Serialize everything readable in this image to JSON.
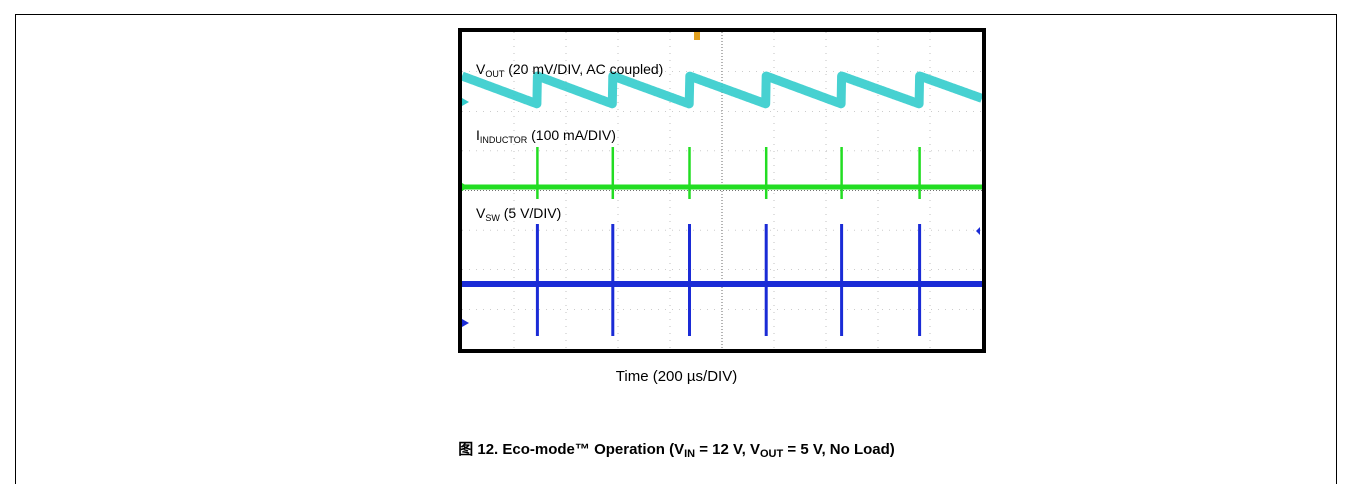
{
  "figure": {
    "caption_prefix": "图 12. Eco-mode™ Operation (V",
    "caption_vin_sub": "IN",
    "caption_mid": " = 12 V, V",
    "caption_vout_sub": "OUT",
    "caption_suffix": " = 5 V, No Load)",
    "x_axis_label": "Time (200 µs/DIV)"
  },
  "traces": {
    "vout": {
      "main": "V",
      "sub": "OUT",
      "rest": " (20 mV/DIV, AC coupled)",
      "color": "#33cccc"
    },
    "iind": {
      "main": "I",
      "sub": "INDUCTOR",
      "rest": " (100 mA/DIV)",
      "color": "#22dd22"
    },
    "vsw": {
      "main": "V",
      "sub": "SW",
      "rest": " (5 V/DIV)",
      "color": "#1a2bd6"
    }
  },
  "chart_data": {
    "type": "line",
    "x_unit": "µs",
    "x_scale": "200 µs/DIV",
    "xlim": [
      0,
      2000
    ],
    "grid": true,
    "switching_times_us": [
      290,
      580,
      875,
      1170,
      1460,
      1760
    ],
    "series": [
      {
        "name": "VOUT",
        "scale": "20 mV/DIV",
        "coupling": "AC",
        "shape": "sawtooth",
        "ripple_mV_peak_to_peak": 20
      },
      {
        "name": "IINDUCTOR",
        "scale": "100 mA/DIV",
        "shape": "pulses at switching times"
      },
      {
        "name": "VSW",
        "scale": "5 V/DIV",
        "shape": "pulses at switching times"
      }
    ]
  }
}
